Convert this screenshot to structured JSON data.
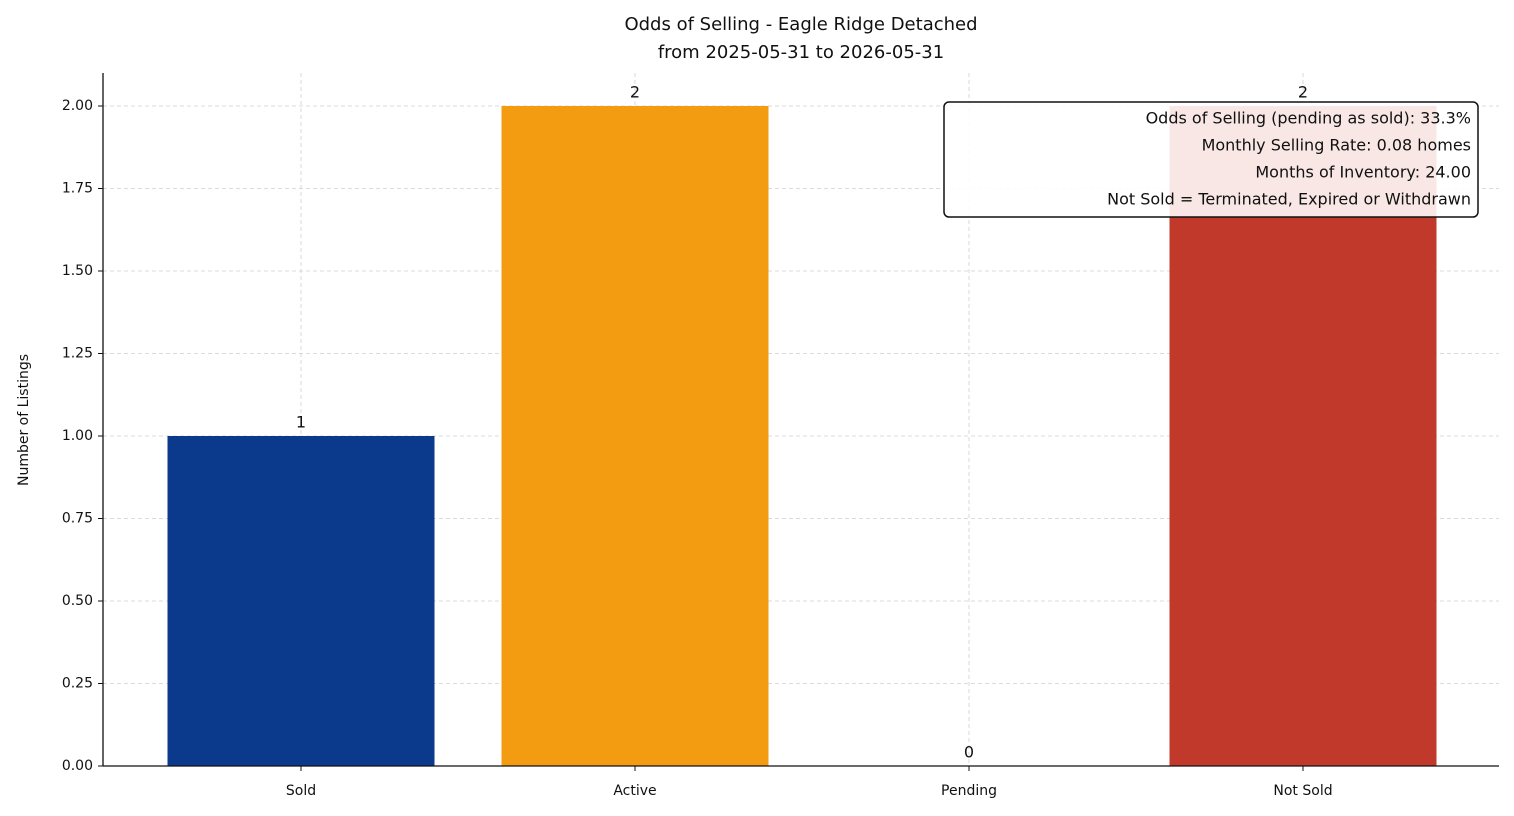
{
  "chart_data": {
    "type": "bar",
    "title": [
      "Odds of Selling - Eagle Ridge Detached",
      "from 2025-05-31 to 2026-05-31"
    ],
    "y_label": "Number of Listings",
    "categories": [
      "Sold",
      "Active",
      "Pending",
      "Not Sold"
    ],
    "values": [
      1,
      2,
      0,
      2
    ],
    "colors": [
      "#0b3a8c",
      "#f39c12",
      "#27ae60",
      "#c0392b"
    ],
    "ylim": [
      0,
      2.1
    ],
    "yticks": [
      {
        "value": 0,
        "label": "0.00"
      },
      {
        "value": 0.25,
        "label": "0.25"
      },
      {
        "value": 0.5,
        "label": "0.50"
      },
      {
        "value": 0.75,
        "label": "0.75"
      },
      {
        "value": 1,
        "label": "1.00"
      },
      {
        "value": 1.25,
        "label": "1.25"
      },
      {
        "value": 1.5,
        "label": "1.50"
      },
      {
        "value": 1.75,
        "label": "1.75"
      },
      {
        "value": 2,
        "label": "2.00"
      }
    ],
    "grid": true,
    "annotation": [
      "Odds of Selling (pending as sold): 33.3%",
      "Monthly Selling Rate: 0.08 homes",
      "Months of Inventory: 24.00",
      "Not Sold = Terminated, Expired or Withdrawn"
    ]
  }
}
